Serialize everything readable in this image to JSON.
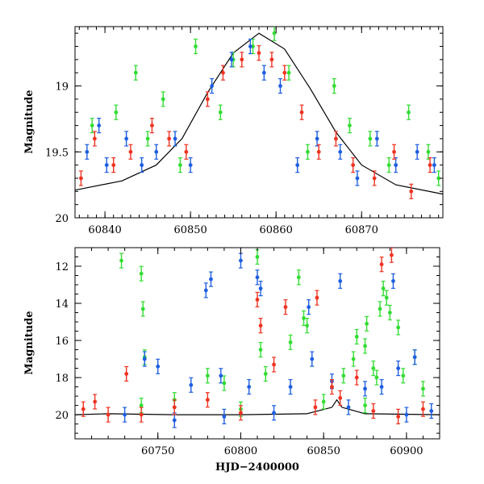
{
  "chart_data": [
    {
      "type": "scatter",
      "panel": "top",
      "title": "",
      "xlabel": "",
      "ylabel": "Magnitude",
      "xlim": [
        60836.5,
        60879.5
      ],
      "ylim": [
        20.0,
        18.55
      ],
      "y_inverted": true,
      "xticks": [
        60840,
        60850,
        60860,
        60870
      ],
      "yticks": [
        19,
        19.5,
        20
      ],
      "ytick_labels": [
        "19",
        "19.5",
        "20"
      ],
      "grid": false,
      "legend": "none",
      "series": [
        {
          "color": "#33dd33",
          "points": [
            [
              60838.5,
              19.3
            ],
            [
              60841.3,
              19.2
            ],
            [
              60843.6,
              18.9
            ],
            [
              60845.0,
              19.4
            ],
            [
              60846.8,
              19.1
            ],
            [
              60848.8,
              19.6
            ],
            [
              60850.6,
              18.7
            ],
            [
              60853.5,
              19.2
            ],
            [
              60855.0,
              18.8
            ],
            [
              60857.3,
              18.7
            ],
            [
              60859.8,
              18.6
            ],
            [
              60861.5,
              18.9
            ],
            [
              60863.7,
              19.5
            ],
            [
              60866.8,
              19.0
            ],
            [
              60868.6,
              19.3
            ],
            [
              60871.0,
              19.4
            ],
            [
              60873.2,
              19.6
            ],
            [
              60875.5,
              19.2
            ],
            [
              60877.8,
              19.5
            ],
            [
              60879.0,
              19.7
            ]
          ]
        },
        {
          "color": "#1f5fe0",
          "points": [
            [
              60837.9,
              19.5
            ],
            [
              60839.3,
              19.3
            ],
            [
              60840.2,
              19.6
            ],
            [
              60842.5,
              19.4
            ],
            [
              60844.3,
              19.6
            ],
            [
              60846.0,
              19.5
            ],
            [
              60848.2,
              19.4
            ],
            [
              60850.0,
              19.6
            ],
            [
              60852.5,
              19.0
            ],
            [
              60854.8,
              18.8
            ],
            [
              60857.0,
              18.7
            ],
            [
              60858.6,
              18.9
            ],
            [
              60860.5,
              19.0
            ],
            [
              60862.5,
              19.6
            ],
            [
              60864.8,
              19.4
            ],
            [
              60867.5,
              19.5
            ],
            [
              60869.5,
              19.7
            ],
            [
              60871.8,
              19.4
            ],
            [
              60874.0,
              19.6
            ],
            [
              60876.5,
              19.5
            ],
            [
              60878.5,
              19.6
            ]
          ]
        },
        {
          "color": "#ee3322",
          "points": [
            [
              60837.2,
              19.7
            ],
            [
              60838.8,
              19.4
            ],
            [
              60841.0,
              19.6
            ],
            [
              60843.0,
              19.5
            ],
            [
              60845.5,
              19.3
            ],
            [
              60847.5,
              19.4
            ],
            [
              60849.5,
              19.5
            ],
            [
              60852.0,
              19.1
            ],
            [
              60853.8,
              18.9
            ],
            [
              60856.0,
              18.8
            ],
            [
              60858.0,
              18.75
            ],
            [
              60859.5,
              18.8
            ],
            [
              60861.0,
              18.9
            ],
            [
              60863.0,
              19.2
            ],
            [
              60865.0,
              19.5
            ],
            [
              60867.0,
              19.4
            ],
            [
              60869.0,
              19.6
            ],
            [
              60871.5,
              19.7
            ],
            [
              60873.8,
              19.5
            ],
            [
              60875.8,
              19.8
            ],
            [
              60878.0,
              19.6
            ]
          ]
        }
      ],
      "model_curve": {
        "color": "#000000",
        "points": [
          [
            60836.5,
            19.79
          ],
          [
            60842,
            19.72
          ],
          [
            60846,
            19.6
          ],
          [
            60849,
            19.4
          ],
          [
            60852,
            19.05
          ],
          [
            60855,
            18.75
          ],
          [
            60858,
            18.6
          ],
          [
            60861,
            18.72
          ],
          [
            60864,
            19.02
          ],
          [
            60867,
            19.35
          ],
          [
            60870,
            19.6
          ],
          [
            60874,
            19.75
          ],
          [
            60879.5,
            19.82
          ]
        ]
      }
    },
    {
      "type": "scatter",
      "panel": "bottom",
      "title": "",
      "xlabel": "HJD−2400000",
      "ylabel": "Magnitude",
      "xlim": [
        60700,
        60920
      ],
      "ylim": [
        21.3,
        11.0
      ],
      "y_inverted": true,
      "xticks": [
        60750,
        60800,
        60850,
        60900
      ],
      "yticks": [
        12,
        14,
        16,
        18,
        20
      ],
      "grid": false,
      "legend": "none",
      "series": [
        {
          "color": "#33dd33",
          "points": [
            [
              60728,
              11.7
            ],
            [
              60740,
              12.4
            ],
            [
              60741,
              14.3
            ],
            [
              60742,
              16.9
            ],
            [
              60780,
              17.9
            ],
            [
              60790,
              18.3
            ],
            [
              60810,
              11.5
            ],
            [
              60812,
              16.5
            ],
            [
              60815,
              17.8
            ],
            [
              60830,
              16.1
            ],
            [
              60835,
              12.6
            ],
            [
              60838,
              14.8
            ],
            [
              60840,
              15.2
            ],
            [
              60862,
              17.9
            ],
            [
              60868,
              17.0
            ],
            [
              60870,
              15.8
            ],
            [
              60875,
              16.3
            ],
            [
              60876,
              15.1
            ],
            [
              60880,
              17.5
            ],
            [
              60882,
              18.0
            ],
            [
              60884,
              14.3
            ],
            [
              60886,
              13.2
            ],
            [
              60888,
              13.7
            ],
            [
              60890,
              14.5
            ],
            [
              60895,
              15.3
            ],
            [
              60898,
              17.9
            ],
            [
              60905,
              16.9
            ],
            [
              60910,
              18.6
            ],
            [
              60740,
              19.5
            ],
            [
              60760,
              19.2
            ],
            [
              60800,
              19.7
            ],
            [
              60850,
              19.3
            ],
            [
              60875,
              19.5
            ]
          ]
        },
        {
          "color": "#1f5fe0",
          "points": [
            [
              60742,
              17.0
            ],
            [
              60750,
              17.4
            ],
            [
              60760,
              20.3
            ],
            [
              60770,
              18.4
            ],
            [
              60779,
              13.3
            ],
            [
              60782,
              12.7
            ],
            [
              60788,
              17.9
            ],
            [
              60800,
              11.7
            ],
            [
              60805,
              18.5
            ],
            [
              60810,
              12.6
            ],
            [
              60812,
              13.2
            ],
            [
              60830,
              18.5
            ],
            [
              60841,
              14.2
            ],
            [
              60843,
              17.0
            ],
            [
              60855,
              18.2
            ],
            [
              60860,
              12.8
            ],
            [
              60875,
              18.6
            ],
            [
              60885,
              18.5
            ],
            [
              60892,
              12.8
            ],
            [
              60895,
              17.5
            ],
            [
              60905,
              16.9
            ],
            [
              60730,
              20.0
            ],
            [
              60790,
              20.1
            ],
            [
              60820,
              19.9
            ],
            [
              60865,
              19.6
            ],
            [
              60900,
              20.0
            ],
            [
              60915,
              19.8
            ]
          ]
        },
        {
          "color": "#ee3322",
          "points": [
            [
              60705,
              19.7
            ],
            [
              60712,
              19.3
            ],
            [
              60720,
              20.0
            ],
            [
              60731,
              17.8
            ],
            [
              60760,
              19.6
            ],
            [
              60780,
              19.2
            ],
            [
              60810,
              13.8
            ],
            [
              60812,
              15.2
            ],
            [
              60820,
              17.3
            ],
            [
              60827,
              14.2
            ],
            [
              60846,
              13.7
            ],
            [
              60855,
              18.5
            ],
            [
              60870,
              18.0
            ],
            [
              60885,
              11.9
            ],
            [
              60891,
              11.4
            ],
            [
              60895,
              20.1
            ],
            [
              60910,
              19.7
            ],
            [
              60740,
              20.0
            ],
            [
              60800,
              19.9
            ],
            [
              60845,
              19.6
            ],
            [
              60860,
              19.1
            ],
            [
              60880,
              19.8
            ]
          ]
        }
      ],
      "model_curve": {
        "color": "#000000",
        "points": [
          [
            60700,
            20.0
          ],
          [
            60720,
            19.95
          ],
          [
            60760,
            20.0
          ],
          [
            60800,
            20.0
          ],
          [
            60840,
            19.95
          ],
          [
            60855,
            19.6
          ],
          [
            60858,
            19.2
          ],
          [
            60861,
            19.6
          ],
          [
            60875,
            19.95
          ],
          [
            60920,
            20.0
          ]
        ]
      }
    }
  ]
}
